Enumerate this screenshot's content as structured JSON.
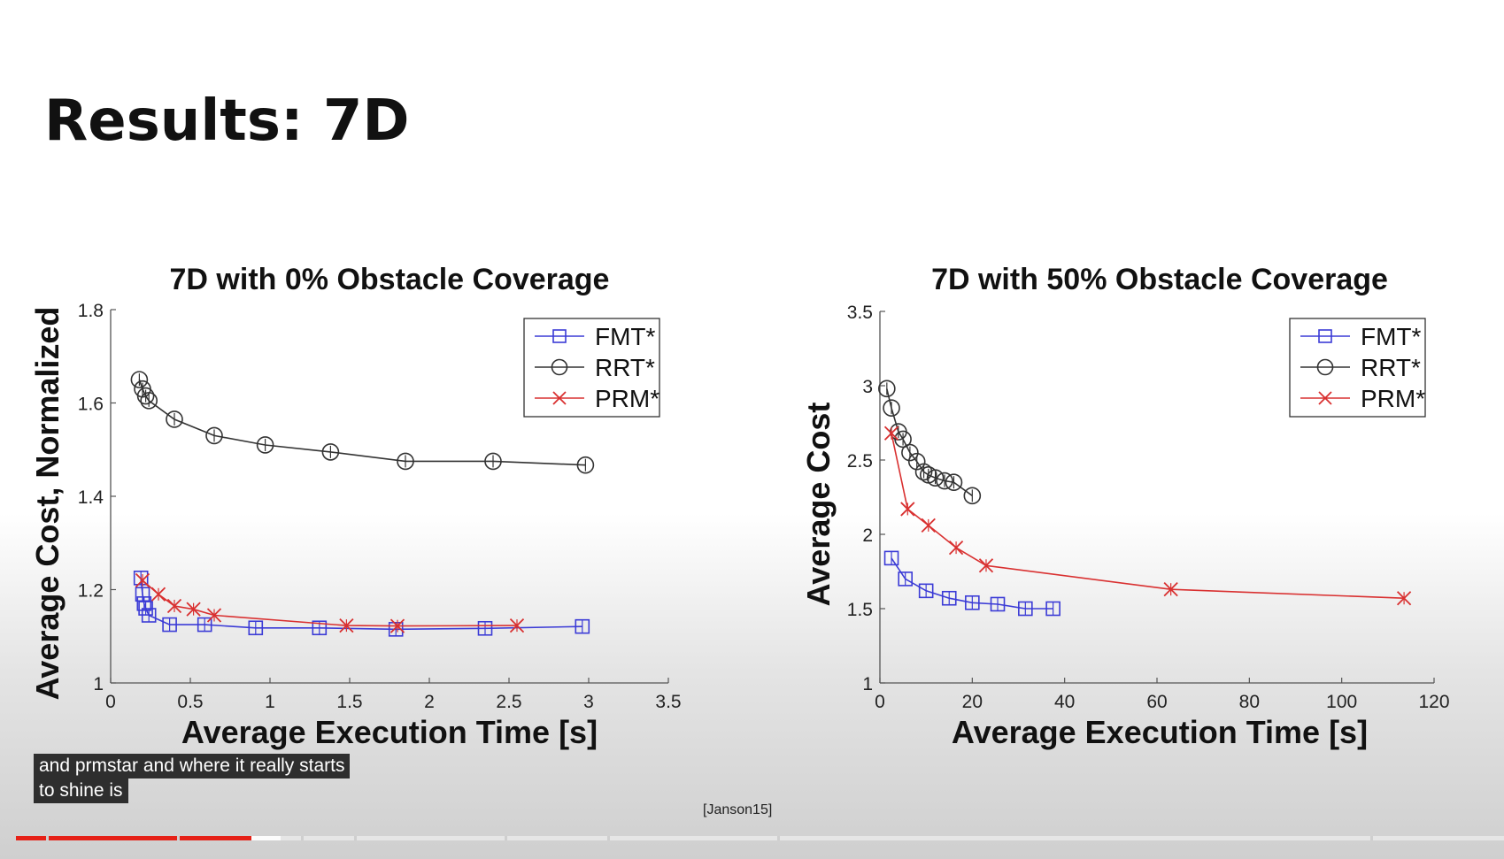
{
  "slide": {
    "title": "Results: 7D",
    "citation": "[Janson15]"
  },
  "captions": {
    "line1": "and prmstar and where it really starts",
    "line2": "to shine is"
  },
  "player": {
    "progress_fraction": 0.158,
    "buffered_fraction": 0.178,
    "accent_color": "#e62117"
  },
  "chart_data": [
    {
      "type": "line",
      "title": "7D with 0% Obstacle Coverage",
      "xlabel": "Average Execution Time [s]",
      "ylabel": "Average Cost, Normalized",
      "xlim": [
        0,
        3.5
      ],
      "ylim": [
        1,
        1.8
      ],
      "xticks": [
        "0",
        "0.5",
        "1",
        "1.5",
        "2",
        "2.5",
        "3",
        "3.5"
      ],
      "yticks": [
        "1",
        "1.2",
        "1.4",
        "1.6",
        "1.8"
      ],
      "legend_position": "top-right",
      "grid": false,
      "series": [
        {
          "name": "FMT*",
          "marker": "square",
          "color": "#3b3bd6",
          "x": [
            0.19,
            0.2,
            0.21,
            0.22,
            0.24,
            0.37,
            0.59,
            0.91,
            1.31,
            1.79,
            2.35,
            2.96
          ],
          "y": [
            1.225,
            1.19,
            1.17,
            1.16,
            1.145,
            1.125,
            1.125,
            1.118,
            1.118,
            1.115,
            1.117,
            1.121
          ]
        },
        {
          "name": "RRT*",
          "marker": "circle",
          "color": "#333333",
          "x": [
            0.18,
            0.2,
            0.22,
            0.24,
            0.4,
            0.65,
            0.97,
            1.38,
            1.85,
            2.4,
            2.98
          ],
          "y": [
            1.65,
            1.63,
            1.615,
            1.605,
            1.565,
            1.53,
            1.51,
            1.495,
            1.475,
            1.475,
            1.467
          ]
        },
        {
          "name": "PRM*",
          "marker": "x",
          "color": "#d93030",
          "x": [
            0.2,
            0.3,
            0.4,
            0.52,
            0.65,
            1.48,
            1.8,
            2.55
          ],
          "y": [
            1.22,
            1.19,
            1.165,
            1.158,
            1.145,
            1.123,
            1.122,
            1.123
          ]
        }
      ]
    },
    {
      "type": "line",
      "title": "7D with 50% Obstacle Coverage",
      "xlabel": "Average Execution Time [s]",
      "ylabel": "Average Cost",
      "xlim": [
        0,
        120
      ],
      "ylim": [
        1,
        3.5
      ],
      "xticks": [
        "0",
        "20",
        "40",
        "60",
        "80",
        "100",
        "120"
      ],
      "yticks": [
        "1",
        "1.5",
        "2",
        "2.5",
        "3",
        "3.5"
      ],
      "legend_position": "top-right",
      "grid": false,
      "series": [
        {
          "name": "FMT*",
          "marker": "square",
          "color": "#3b3bd6",
          "x": [
            2.5,
            5.5,
            10,
            15,
            20,
            25.5,
            31.5,
            37.5
          ],
          "y": [
            1.84,
            1.7,
            1.62,
            1.57,
            1.54,
            1.53,
            1.5,
            1.5
          ]
        },
        {
          "name": "RRT*",
          "marker": "circle",
          "color": "#333333",
          "x": [
            1.5,
            2.5,
            4,
            5,
            6.5,
            8,
            9.5,
            10.5,
            12,
            14,
            16,
            20
          ],
          "y": [
            2.98,
            2.85,
            2.69,
            2.64,
            2.55,
            2.49,
            2.42,
            2.4,
            2.38,
            2.36,
            2.35,
            2.26
          ]
        },
        {
          "name": "PRM*",
          "marker": "x",
          "color": "#d93030",
          "x": [
            2.5,
            6,
            10.5,
            16.5,
            23,
            63,
            113.5
          ],
          "y": [
            2.68,
            2.17,
            2.06,
            1.91,
            1.79,
            1.63,
            1.57
          ]
        }
      ]
    }
  ]
}
